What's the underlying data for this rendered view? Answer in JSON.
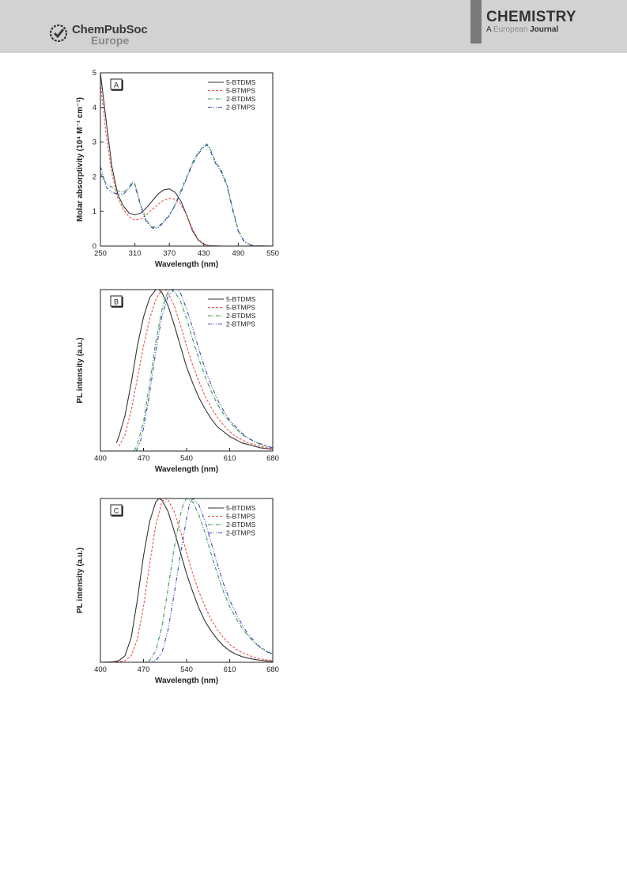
{
  "header": {
    "publisher_name": "ChemPubSoc",
    "publisher_sub": "Europe",
    "journal_title": "CHEMISTRY",
    "journal_sub_a": "A",
    "journal_sub_eu": "European",
    "journal_sub_j": "Journal"
  },
  "colors": {
    "5-BTDMS": "#333333",
    "5-BTMPS": "#e8564a",
    "2-BTDMS": "#3a9a52",
    "2-BTMPS": "#3a4ab4"
  },
  "chart_data": [
    {
      "type": "line",
      "panel_label": "A",
      "xlabel": "Wavelength (nm)",
      "ylabel": "Molar absorptivity (10⁴ M⁻¹ cm⁻¹)",
      "xlim": [
        250,
        550
      ],
      "ylim": [
        0,
        5
      ],
      "xticks": [
        250,
        310,
        370,
        430,
        490,
        550
      ],
      "yticks": [
        0,
        1,
        2,
        3,
        4,
        5
      ],
      "legend_position": "top-right",
      "series": [
        {
          "name": "5-BTDMS",
          "style": "solid",
          "x": [
            250,
            260,
            270,
            280,
            290,
            300,
            310,
            320,
            330,
            340,
            350,
            360,
            370,
            380,
            390,
            400,
            410,
            420,
            430,
            440,
            460,
            550
          ],
          "y": [
            5.0,
            3.6,
            2.3,
            1.5,
            1.15,
            0.95,
            0.9,
            0.95,
            1.1,
            1.3,
            1.5,
            1.62,
            1.65,
            1.55,
            1.3,
            0.9,
            0.45,
            0.18,
            0.05,
            0.01,
            0,
            0
          ]
        },
        {
          "name": "5-BTMPS",
          "style": "dash",
          "x": [
            250,
            260,
            270,
            280,
            290,
            300,
            310,
            320,
            330,
            340,
            350,
            360,
            370,
            380,
            390,
            400,
            410,
            420,
            430,
            440,
            460,
            550
          ],
          "y": [
            4.7,
            3.2,
            2.1,
            1.4,
            1.05,
            0.85,
            0.75,
            0.78,
            0.9,
            1.05,
            1.2,
            1.32,
            1.38,
            1.35,
            1.2,
            0.9,
            0.5,
            0.2,
            0.06,
            0.01,
            0,
            0
          ]
        },
        {
          "name": "2-BTDMS",
          "style": "dashdot",
          "x": [
            250,
            260,
            270,
            280,
            290,
            300,
            305,
            310,
            320,
            330,
            340,
            350,
            360,
            370,
            380,
            390,
            400,
            410,
            420,
            430,
            435,
            440,
            450,
            460,
            470,
            480,
            490,
            500,
            510,
            520,
            550
          ],
          "y": [
            2.1,
            1.8,
            1.7,
            1.6,
            1.55,
            1.7,
            1.85,
            1.8,
            1.2,
            0.75,
            0.55,
            0.55,
            0.7,
            0.9,
            1.2,
            1.6,
            2.0,
            2.4,
            2.7,
            2.9,
            2.95,
            2.85,
            2.45,
            2.2,
            1.8,
            1.1,
            0.45,
            0.15,
            0.04,
            0.01,
            0
          ]
        },
        {
          "name": "2-BTMPS",
          "style": "dashdotdot",
          "x": [
            250,
            260,
            270,
            280,
            290,
            300,
            305,
            310,
            320,
            330,
            340,
            350,
            360,
            370,
            380,
            390,
            400,
            410,
            420,
            430,
            435,
            440,
            450,
            460,
            470,
            480,
            490,
            500,
            510,
            520,
            550
          ],
          "y": [
            2.3,
            1.7,
            1.55,
            1.5,
            1.5,
            1.65,
            1.8,
            1.75,
            1.15,
            0.7,
            0.52,
            0.52,
            0.68,
            0.88,
            1.18,
            1.55,
            1.95,
            2.35,
            2.65,
            2.85,
            2.92,
            2.8,
            2.4,
            2.15,
            1.75,
            1.05,
            0.42,
            0.13,
            0.03,
            0.01,
            0
          ]
        }
      ]
    },
    {
      "type": "line",
      "panel_label": "B",
      "xlabel": "Wavelength (nm)",
      "ylabel": "PL intensity (a.u.)",
      "xlim": [
        400,
        680
      ],
      "ylim": [
        0,
        1
      ],
      "xticks": [
        400,
        470,
        540,
        610,
        680
      ],
      "legend_position": "top-right",
      "series": [
        {
          "name": "5-BTDMS",
          "style": "solid",
          "x": [
            426,
            430,
            440,
            450,
            460,
            470,
            480,
            490,
            495,
            500,
            510,
            520,
            530,
            540,
            550,
            560,
            570,
            580,
            590,
            600,
            610,
            620,
            630,
            640,
            650,
            660,
            670,
            680
          ],
          "y": [
            0.05,
            0.09,
            0.22,
            0.42,
            0.65,
            0.83,
            0.95,
            1.0,
            1.0,
            0.98,
            0.9,
            0.78,
            0.65,
            0.52,
            0.42,
            0.33,
            0.26,
            0.2,
            0.15,
            0.12,
            0.09,
            0.07,
            0.05,
            0.04,
            0.03,
            0.02,
            0.015,
            0.01
          ]
        },
        {
          "name": "5-BTMPS",
          "style": "dash",
          "x": [
            430,
            440,
            450,
            460,
            470,
            480,
            490,
            500,
            505,
            510,
            520,
            530,
            540,
            550,
            560,
            570,
            580,
            590,
            600,
            610,
            620,
            630,
            640,
            650,
            660,
            670,
            680
          ],
          "y": [
            0.03,
            0.1,
            0.25,
            0.45,
            0.65,
            0.82,
            0.94,
            1.0,
            1.0,
            0.98,
            0.9,
            0.78,
            0.65,
            0.53,
            0.43,
            0.34,
            0.27,
            0.21,
            0.16,
            0.12,
            0.09,
            0.07,
            0.05,
            0.04,
            0.03,
            0.02,
            0.015
          ]
        },
        {
          "name": "2-BTDMS",
          "style": "dashdot",
          "x": [
            455,
            460,
            470,
            480,
            490,
            500,
            510,
            515,
            520,
            530,
            540,
            550,
            560,
            570,
            580,
            590,
            600,
            610,
            620,
            630,
            640,
            650,
            660,
            670,
            680
          ],
          "y": [
            0.0,
            0.04,
            0.18,
            0.42,
            0.68,
            0.88,
            0.99,
            1.0,
            0.99,
            0.93,
            0.82,
            0.69,
            0.57,
            0.46,
            0.37,
            0.29,
            0.23,
            0.18,
            0.14,
            0.1,
            0.08,
            0.06,
            0.04,
            0.03,
            0.02
          ]
        },
        {
          "name": "2-BTMPS",
          "style": "dashdotdot",
          "x": [
            458,
            465,
            470,
            480,
            490,
            500,
            510,
            520,
            525,
            530,
            540,
            550,
            560,
            570,
            580,
            590,
            600,
            610,
            620,
            630,
            640,
            650,
            660,
            670,
            680
          ],
          "y": [
            0.0,
            0.06,
            0.14,
            0.36,
            0.62,
            0.84,
            0.96,
            1.0,
            1.0,
            0.98,
            0.88,
            0.76,
            0.63,
            0.51,
            0.41,
            0.32,
            0.25,
            0.19,
            0.15,
            0.11,
            0.08,
            0.06,
            0.045,
            0.03,
            0.02
          ]
        }
      ]
    },
    {
      "type": "line",
      "panel_label": "C",
      "xlabel": "Wavelength (nm)",
      "ylabel": "PL intensity (a.u.)",
      "xlim": [
        400,
        680
      ],
      "ylim": [
        0,
        1
      ],
      "xticks": [
        400,
        470,
        540,
        610,
        680
      ],
      "legend_position": "top-right",
      "series": [
        {
          "name": "5-BTDMS",
          "style": "solid",
          "x": [
            400,
            420,
            430,
            440,
            450,
            460,
            470,
            480,
            490,
            495,
            500,
            510,
            520,
            530,
            540,
            550,
            560,
            570,
            580,
            590,
            600,
            610,
            620,
            630,
            640,
            650,
            660,
            670,
            680
          ],
          "y": [
            0.0,
            0.003,
            0.01,
            0.04,
            0.15,
            0.38,
            0.65,
            0.86,
            0.98,
            1.0,
            0.99,
            0.92,
            0.8,
            0.67,
            0.54,
            0.43,
            0.33,
            0.25,
            0.19,
            0.14,
            0.1,
            0.07,
            0.05,
            0.035,
            0.025,
            0.018,
            0.012,
            0.008,
            0.005
          ]
        },
        {
          "name": "5-BTMPS",
          "style": "dash",
          "x": [
            400,
            420,
            430,
            440,
            450,
            460,
            470,
            480,
            490,
            500,
            505,
            510,
            520,
            530,
            540,
            550,
            560,
            570,
            580,
            590,
            600,
            610,
            620,
            630,
            640,
            650,
            660,
            670,
            680
          ],
          "y": [
            0.0,
            0.002,
            0.004,
            0.01,
            0.04,
            0.14,
            0.34,
            0.6,
            0.84,
            0.98,
            1.0,
            0.99,
            0.92,
            0.8,
            0.67,
            0.54,
            0.43,
            0.34,
            0.26,
            0.2,
            0.15,
            0.11,
            0.08,
            0.06,
            0.045,
            0.03,
            0.02,
            0.015,
            0.01
          ]
        },
        {
          "name": "2-BTDMS",
          "style": "dashdot",
          "x": [
            465,
            470,
            480,
            490,
            500,
            510,
            520,
            530,
            535,
            540,
            550,
            560,
            570,
            580,
            590,
            600,
            610,
            620,
            630,
            640,
            650,
            660,
            670,
            680
          ],
          "y": [
            0.0,
            0.0,
            0.01,
            0.07,
            0.22,
            0.45,
            0.7,
            0.9,
            0.97,
            1.0,
            0.98,
            0.9,
            0.79,
            0.66,
            0.54,
            0.43,
            0.34,
            0.27,
            0.21,
            0.16,
            0.12,
            0.09,
            0.07,
            0.05
          ]
        },
        {
          "name": "2-BTMPS",
          "style": "dashdotdot",
          "x": [
            475,
            480,
            490,
            500,
            510,
            520,
            530,
            540,
            545,
            550,
            560,
            570,
            580,
            590,
            600,
            610,
            620,
            630,
            640,
            650,
            660,
            670,
            680
          ],
          "y": [
            0.0,
            0.0,
            0.01,
            0.06,
            0.2,
            0.42,
            0.66,
            0.88,
            0.97,
            1.0,
            0.96,
            0.86,
            0.73,
            0.6,
            0.48,
            0.38,
            0.3,
            0.23,
            0.17,
            0.13,
            0.09,
            0.065,
            0.045
          ]
        }
      ]
    }
  ]
}
